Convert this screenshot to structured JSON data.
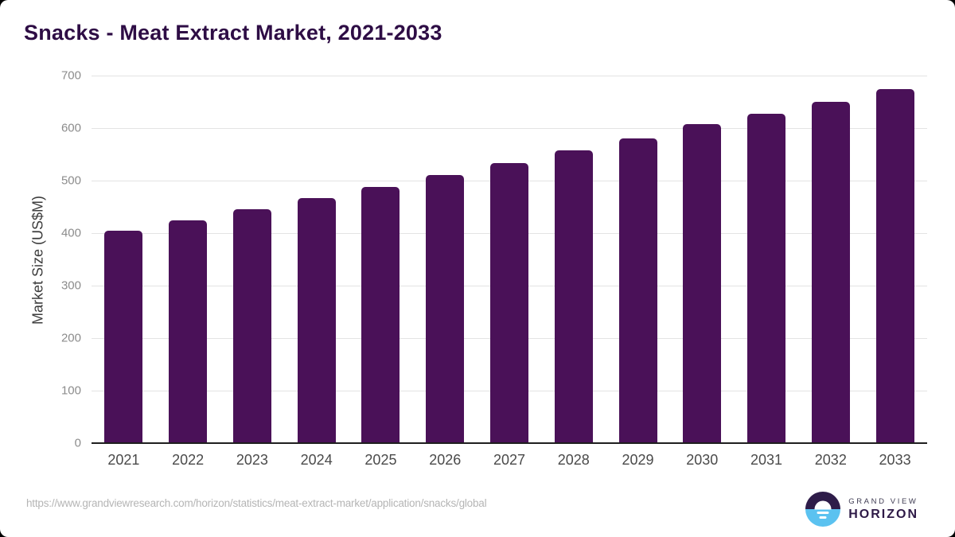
{
  "page": {
    "source_url": "https://www.grandviewresearch.com/horizon/statistics/meat-extract-market/application/snacks/global"
  },
  "chart_data": {
    "type": "bar",
    "title": "Snacks - Meat Extract Market, 2021-2033",
    "categories": [
      "2021",
      "2022",
      "2023",
      "2024",
      "2025",
      "2026",
      "2027",
      "2028",
      "2029",
      "2030",
      "2031",
      "2032",
      "2033"
    ],
    "values": [
      405,
      425,
      445,
      466,
      488,
      510,
      533,
      557,
      581,
      607,
      628,
      650,
      674
    ],
    "xlabel": "",
    "ylabel": "Market Size (US$M)",
    "ylim": [
      0,
      700
    ],
    "ytick_step": 100,
    "yticks": [
      0,
      100,
      200,
      300,
      400,
      500,
      600,
      700
    ],
    "grid": true,
    "legend": "none",
    "bar_color": "#4A1158"
  },
  "colors": {
    "title": "#2E0D45",
    "bar": "#4A1158",
    "gridline": "#E3E3E3",
    "axis_line": "#1F1F1F",
    "ytick_label": "#8C8C8C",
    "xtick_label": "#4A4A4A",
    "url_text": "#B5B5B5",
    "logo_purple": "#2E1C49",
    "logo_blue": "#5BC2F0"
  },
  "logo": {
    "brand_top": "GRAND VIEW",
    "brand_bottom": "HORIZON"
  }
}
